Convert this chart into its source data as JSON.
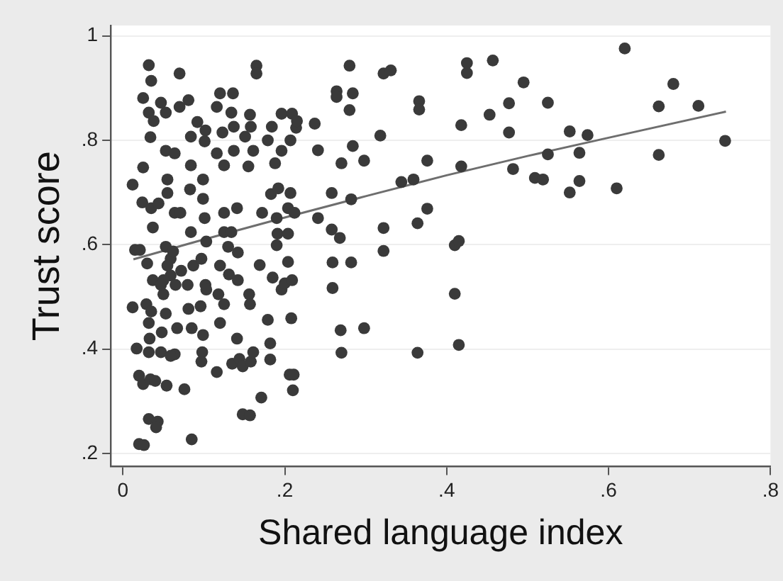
{
  "chart_data": {
    "type": "scatter",
    "xlabel": "Shared language index",
    "ylabel": "Trust score",
    "xlim": [
      -0.015,
      0.8
    ],
    "ylim": [
      0.175,
      1.02
    ],
    "xticks": [
      0,
      {
        "value": 0.2,
        "label": ".2"
      },
      {
        "value": 0.4,
        "label": ".4"
      },
      {
        "value": 0.6,
        "label": ".6"
      },
      {
        "value": 0.8,
        "label": ".8"
      }
    ],
    "yticks": [
      {
        "value": 0.2,
        "label": ".2"
      },
      {
        "value": 0.4,
        "label": ".4"
      },
      {
        "value": 0.6,
        "label": ".6"
      },
      {
        "value": 0.8,
        "label": ".8"
      },
      1
    ],
    "grid": "y",
    "legend": false,
    "marker": "circle",
    "series": [
      {
        "color": "#3a3a3a",
        "x": [
          0.237,
          0.241,
          0.241,
          0.258,
          0.258,
          0.259,
          0.259,
          0.264,
          0.264,
          0.268,
          0.27,
          0.269,
          0.27,
          0.28,
          0.28,
          0.282,
          0.282,
          0.284,
          0.284,
          0.298,
          0.298,
          0.318,
          0.322,
          0.331,
          0.322,
          0.322,
          0.344,
          0.359,
          0.366,
          0.366,
          0.364,
          0.364,
          0.376,
          0.376,
          0.41,
          0.415,
          0.41,
          0.415,
          0.418,
          0.418,
          0.425,
          0.425,
          0.453,
          0.457,
          0.477,
          0.477,
          0.482,
          0.495,
          0.509,
          0.519,
          0.525,
          0.525,
          0.552,
          0.552,
          0.564,
          0.564,
          0.574,
          0.61,
          0.62,
          0.662,
          0.662,
          0.68,
          0.711,
          0.744,
          0.012,
          0.012,
          0.015,
          0.021,
          0.017,
          0.025,
          0.02,
          0.025,
          0.02,
          0.026,
          0.032,
          0.035,
          0.025,
          0.032,
          0.034,
          0.038,
          0.047,
          0.053,
          0.024,
          0.035,
          0.037,
          0.03,
          0.029,
          0.032,
          0.033,
          0.037,
          0.035,
          0.032,
          0.032,
          0.043,
          0.041,
          0.034,
          0.04,
          0.044,
          0.05,
          0.053,
          0.048,
          0.047,
          0.054,
          0.053,
          0.055,
          0.055,
          0.064,
          0.07,
          0.07,
          0.081,
          0.064,
          0.071,
          0.059,
          0.059,
          0.065,
          0.072,
          0.067,
          0.064,
          0.059,
          0.076,
          0.085,
          0.084,
          0.083,
          0.084,
          0.084,
          0.092,
          0.087,
          0.08,
          0.081,
          0.085,
          0.096,
          0.098,
          0.097,
          0.099,
          0.102,
          0.097,
          0.101,
          0.099,
          0.099,
          0.101,
          0.102,
          0.103,
          0.103,
          0.116,
          0.116,
          0.116,
          0.118,
          0.12,
          0.12,
          0.125,
          0.125,
          0.125,
          0.125,
          0.123,
          0.12,
          0.13,
          0.131,
          0.134,
          0.134,
          0.136,
          0.137,
          0.137,
          0.135,
          0.141,
          0.142,
          0.142,
          0.141,
          0.144,
          0.148,
          0.148,
          0.157,
          0.151,
          0.155,
          0.156,
          0.157,
          0.158,
          0.161,
          0.158,
          0.157,
          0.161,
          0.165,
          0.165,
          0.169,
          0.172,
          0.171,
          0.179,
          0.179,
          0.182,
          0.182,
          0.184,
          0.183,
          0.185,
          0.188,
          0.19,
          0.19,
          0.191,
          0.192,
          0.196,
          0.196,
          0.196,
          0.2,
          0.204,
          0.204,
          0.204,
          0.207,
          0.207,
          0.208,
          0.209,
          0.209,
          0.206,
          0.211,
          0.21,
          0.212,
          0.214,
          0.215,
          0.053,
          0.055,
          0.05,
          0.062,
          0.047
        ],
        "values": [
          0.832,
          0.781,
          0.651,
          0.699,
          0.629,
          0.566,
          0.517,
          0.894,
          0.883,
          0.613,
          0.756,
          0.436,
          0.393,
          0.943,
          0.858,
          0.687,
          0.566,
          0.89,
          0.789,
          0.761,
          0.44,
          0.809,
          0.928,
          0.934,
          0.632,
          0.588,
          0.72,
          0.725,
          0.875,
          0.859,
          0.641,
          0.393,
          0.761,
          0.669,
          0.599,
          0.607,
          0.506,
          0.408,
          0.829,
          0.75,
          0.948,
          0.929,
          0.849,
          0.953,
          0.871,
          0.815,
          0.745,
          0.911,
          0.728,
          0.725,
          0.872,
          0.773,
          0.817,
          0.7,
          0.776,
          0.722,
          0.81,
          0.708,
          0.976,
          0.865,
          0.772,
          0.908,
          0.866,
          0.799,
          0.715,
          0.48,
          0.59,
          0.59,
          0.401,
          0.748,
          0.349,
          0.333,
          0.218,
          0.216,
          0.944,
          0.914,
          0.881,
          0.853,
          0.806,
          0.837,
          0.872,
          0.853,
          0.681,
          0.67,
          0.633,
          0.564,
          0.486,
          0.45,
          0.42,
          0.532,
          0.472,
          0.394,
          0.266,
          0.261,
          0.25,
          0.342,
          0.339,
          0.679,
          0.505,
          0.468,
          0.432,
          0.394,
          0.33,
          0.78,
          0.725,
          0.699,
          0.775,
          0.864,
          0.928,
          0.877,
          0.661,
          0.661,
          0.573,
          0.541,
          0.523,
          0.55,
          0.44,
          0.39,
          0.387,
          0.323,
          0.227,
          0.624,
          0.706,
          0.752,
          0.807,
          0.835,
          0.56,
          0.523,
          0.477,
          0.44,
          0.482,
          0.394,
          0.376,
          0.427,
          0.523,
          0.573,
          0.651,
          0.688,
          0.725,
          0.798,
          0.819,
          0.606,
          0.514,
          0.356,
          0.864,
          0.775,
          0.505,
          0.56,
          0.45,
          0.486,
          0.624,
          0.661,
          0.752,
          0.815,
          0.89,
          0.596,
          0.543,
          0.624,
          0.853,
          0.89,
          0.826,
          0.78,
          0.372,
          0.42,
          0.532,
          0.585,
          0.67,
          0.381,
          0.367,
          0.275,
          0.273,
          0.807,
          0.75,
          0.505,
          0.486,
          0.376,
          0.394,
          0.826,
          0.849,
          0.78,
          0.943,
          0.928,
          0.561,
          0.661,
          0.307,
          0.8,
          0.456,
          0.411,
          0.38,
          0.826,
          0.697,
          0.537,
          0.756,
          0.651,
          0.599,
          0.621,
          0.708,
          0.851,
          0.78,
          0.514,
          0.526,
          0.567,
          0.621,
          0.67,
          0.699,
          0.8,
          0.459,
          0.532,
          0.851,
          0.351,
          0.351,
          0.321,
          0.661,
          0.824,
          0.837,
          0.596,
          0.56,
          0.532,
          0.587,
          0.523
        ]
      },
      {
        "type": "line",
        "marker": "none",
        "color": "#6e6e6e",
        "x": [
          0.013,
          0.1,
          0.2,
          0.3,
          0.4,
          0.5,
          0.6,
          0.745
        ],
        "values": [
          0.572,
          0.61,
          0.652,
          0.693,
          0.733,
          0.77,
          0.805,
          0.855
        ]
      }
    ]
  }
}
